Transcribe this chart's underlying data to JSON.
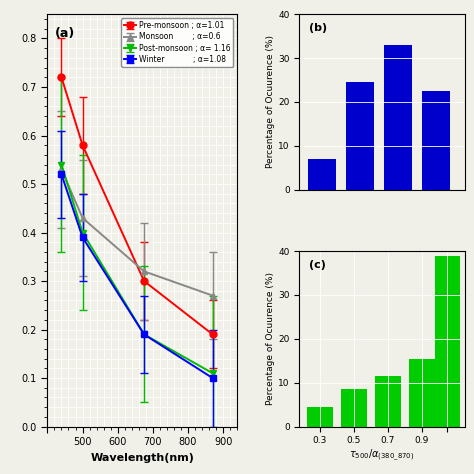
{
  "wavelengths": [
    440,
    500,
    675,
    870
  ],
  "pre_monsoon": [
    0.72,
    0.58,
    0.3,
    0.19
  ],
  "pre_monsoon_err": [
    0.08,
    0.1,
    0.08,
    0.07
  ],
  "monsoon": [
    0.53,
    0.43,
    0.32,
    0.27
  ],
  "monsoon_err": [
    0.12,
    0.12,
    0.1,
    0.09
  ],
  "post_monsoon": [
    0.54,
    0.4,
    0.19,
    0.11
  ],
  "post_monsoon_err": [
    0.18,
    0.16,
    0.14,
    0.16
  ],
  "winter": [
    0.52,
    0.39,
    0.19,
    0.1
  ],
  "winter_err": [
    0.09,
    0.09,
    0.08,
    0.1
  ],
  "bar_b_categories": [
    0.3,
    0.5,
    0.7,
    0.9
  ],
  "bar_b_values": [
    7.0,
    24.5,
    33.0,
    22.5
  ],
  "bar_c_values": [
    4.5,
    8.5,
    11.5,
    15.5
  ],
  "bar_c_extra_val": 39.0,
  "bar_color_b": "#0000cc",
  "bar_color_c": "#00cc00",
  "line_color_pre": "#ff0000",
  "line_color_monsoon": "#888888",
  "line_color_post": "#00bb00",
  "line_color_winter": "#0000ff",
  "xlabel_a": "Wavelength(nm)",
  "ylabel_bc": "Percentage of Ocuurence (%)",
  "xlabel_bc": "τ_{500}/α_{(380_870)}",
  "label_pre": "Pre-monsoon ; α=1.01",
  "label_monsoon": "Monsoon        ; α=0.6",
  "label_post": "Post-monsoon ; α= 1.16",
  "label_winter": "Winter            ; α=1.08",
  "panel_a": "(a)",
  "panel_b": "(b)",
  "panel_c": "(c)",
  "xlim_a": [
    400,
    940
  ],
  "ylim_a": [
    0.0,
    0.85
  ],
  "xticks_a": [
    400,
    500,
    600,
    700,
    800,
    900
  ],
  "xtick_labels_a": [
    "",
    "500",
    "600",
    "700",
    "800",
    "900"
  ],
  "yticks_a": [
    0.0,
    0.1,
    0.2,
    0.3,
    0.4,
    0.5,
    0.6,
    0.7,
    0.8
  ],
  "ylim_bc": [
    0,
    40
  ],
  "yticks_bc": [
    0,
    10,
    20,
    30,
    40
  ],
  "bg_color": "#f0f0e8"
}
